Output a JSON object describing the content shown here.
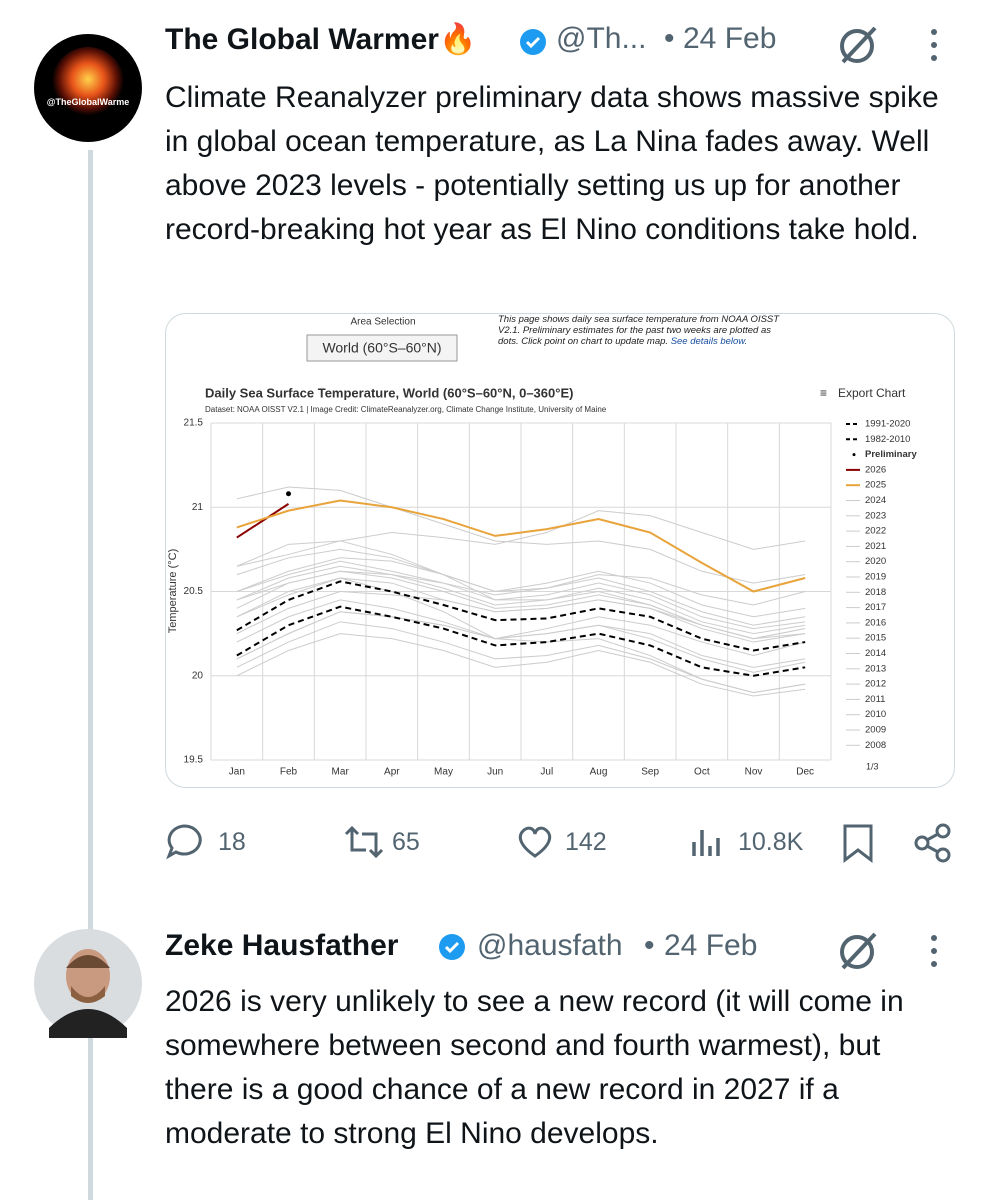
{
  "tweets": [
    {
      "author": "The Global Warmer🔥",
      "handle": "@Th...",
      "date": "24 Feb",
      "avatar_label": "@TheGlobalWarme",
      "text": "Climate Reanalyzer preliminary data shows massive spike in global ocean temperature, as La Nina fades away. Well above 2023 levels - potentially setting us up for another record-breaking hot year as El Nino conditions take hold.",
      "replies": "18",
      "reposts": "65",
      "likes": "142",
      "views": "10.8K"
    },
    {
      "author": "Zeke Hausfather",
      "handle": "@hausfath",
      "date": "24 Feb",
      "text": "2026 is very unlikely to see a new record (it will come in somewhere between second and fourth warmest), but there is a good chance of a new record in 2027 if a moderate to strong El Nino develops."
    }
  ],
  "chart_data": {
    "type": "line",
    "title": "Daily Sea Surface Temperature, World (60°S–60°N, 0–360°E)",
    "subtitle": "Dataset: NOAA OISST V2.1 | Image Credit: ClimateReanalyzer.org, Climate Change Institute, University of Maine",
    "area_selection_label": "Area Selection",
    "area_selection_value": "World (60°S–60°N)",
    "note": "This page shows daily sea surface temperature from NOAA OISST V2.1. Preliminary estimates for the past two weeks are plotted as dots. Click point on chart to update map.",
    "note_link": "See details below.",
    "export_label": "Export Chart",
    "legend_page": "1/3",
    "y_label": "Temperature (°C)",
    "categories": [
      "Jan",
      "Feb",
      "Mar",
      "Apr",
      "May",
      "Jun",
      "Jul",
      "Aug",
      "Sep",
      "Oct",
      "Nov",
      "Dec"
    ],
    "ylim": [
      19.5,
      21.5
    ],
    "yticks": [
      19.5,
      20,
      20.5,
      21,
      21.5
    ],
    "grid": true,
    "series": [
      {
        "name": "1991-2020",
        "color": "#000000",
        "style": "dashed",
        "values": [
          20.27,
          20.45,
          20.56,
          20.5,
          20.42,
          20.33,
          20.34,
          20.4,
          20.35,
          20.22,
          20.15,
          20.2
        ]
      },
      {
        "name": "1982-2010",
        "color": "#000000",
        "style": "dashed",
        "values": [
          20.12,
          20.3,
          20.41,
          20.35,
          20.28,
          20.18,
          20.2,
          20.25,
          20.18,
          20.05,
          20.0,
          20.05
        ]
      },
      {
        "name": "Preliminary",
        "color": "#000000",
        "style": "dotted",
        "values": [
          null,
          21.08,
          null,
          null,
          null,
          null,
          null,
          null,
          null,
          null,
          null,
          null
        ]
      },
      {
        "name": "2026",
        "color": "#8b0000",
        "style": "solid",
        "values": [
          20.82,
          21.02,
          null,
          null,
          null,
          null,
          null,
          null,
          null,
          null,
          null,
          null
        ]
      },
      {
        "name": "2025",
        "color": "#e8a33a",
        "style": "solid",
        "values": [
          20.88,
          20.98,
          21.04,
          21.0,
          20.93,
          20.83,
          20.87,
          20.93,
          20.85,
          20.67,
          20.5,
          20.58
        ]
      },
      {
        "name": "2024",
        "color": "#cccccc",
        "style": "solid",
        "values": [
          21.05,
          21.12,
          21.1,
          21.0,
          20.9,
          20.8,
          20.78,
          20.8,
          20.75,
          20.62,
          20.55,
          20.6
        ]
      },
      {
        "name": "2023",
        "color": "#cccccc",
        "style": "solid",
        "values": [
          20.65,
          20.72,
          20.8,
          20.85,
          20.82,
          20.78,
          20.85,
          20.98,
          20.95,
          20.85,
          20.75,
          20.8
        ]
      },
      {
        "name": "2022",
        "color": "#cccccc",
        "style": "solid",
        "values": [
          20.5,
          20.6,
          20.68,
          20.62,
          20.55,
          20.45,
          20.48,
          20.55,
          20.48,
          20.35,
          20.28,
          20.32
        ]
      },
      {
        "name": "2021",
        "color": "#cccccc",
        "style": "solid",
        "values": [
          20.45,
          20.58,
          20.65,
          20.6,
          20.52,
          20.42,
          20.45,
          20.52,
          20.45,
          20.32,
          20.25,
          20.3
        ]
      },
      {
        "name": "2020",
        "color": "#cccccc",
        "style": "solid",
        "values": [
          20.6,
          20.7,
          20.75,
          20.7,
          20.6,
          20.5,
          20.52,
          20.58,
          20.5,
          20.38,
          20.3,
          20.35
        ]
      },
      {
        "name": "2019",
        "color": "#cccccc",
        "style": "solid",
        "values": [
          20.5,
          20.62,
          20.7,
          20.68,
          20.6,
          20.5,
          20.55,
          20.62,
          20.55,
          20.42,
          20.35,
          20.4
        ]
      },
      {
        "name": "2018",
        "color": "#cccccc",
        "style": "solid",
        "values": [
          20.35,
          20.48,
          20.58,
          20.55,
          20.45,
          20.38,
          20.4,
          20.45,
          20.4,
          20.28,
          20.2,
          20.25
        ]
      },
      {
        "name": "2017",
        "color": "#cccccc",
        "style": "solid",
        "values": [
          20.45,
          20.55,
          20.62,
          20.58,
          20.5,
          20.4,
          20.42,
          20.48,
          20.42,
          20.3,
          20.22,
          20.28
        ]
      },
      {
        "name": "2016",
        "color": "#cccccc",
        "style": "solid",
        "values": [
          20.65,
          20.78,
          20.8,
          20.72,
          20.6,
          20.45,
          20.45,
          20.5,
          20.42,
          20.3,
          20.22,
          20.25
        ]
      },
      {
        "name": "2015",
        "color": "#cccccc",
        "style": "solid",
        "values": [
          20.4,
          20.55,
          20.62,
          20.6,
          20.55,
          20.48,
          20.52,
          20.6,
          20.58,
          20.48,
          20.42,
          20.5
        ]
      },
      {
        "name": "2014",
        "color": "#cccccc",
        "style": "solid",
        "values": [
          20.25,
          20.4,
          20.5,
          20.48,
          20.45,
          20.38,
          20.4,
          20.45,
          20.4,
          20.3,
          20.22,
          20.28
        ]
      },
      {
        "name": "2013",
        "color": "#cccccc",
        "style": "solid",
        "values": [
          20.2,
          20.35,
          20.45,
          20.4,
          20.32,
          20.22,
          20.25,
          20.3,
          20.22,
          20.1,
          20.02,
          20.08
        ]
      },
      {
        "name": "2012",
        "color": "#cccccc",
        "style": "solid",
        "values": [
          20.1,
          20.25,
          20.38,
          20.35,
          20.3,
          20.22,
          20.25,
          20.3,
          20.25,
          20.12,
          20.05,
          20.1
        ]
      },
      {
        "name": "2011",
        "color": "#cccccc",
        "style": "solid",
        "values": [
          20.05,
          20.2,
          20.32,
          20.28,
          20.2,
          20.1,
          20.12,
          20.18,
          20.1,
          19.98,
          19.9,
          19.95
        ]
      },
      {
        "name": "2010",
        "color": "#cccccc",
        "style": "solid",
        "values": [
          20.35,
          20.5,
          20.58,
          20.5,
          20.38,
          20.22,
          20.2,
          20.22,
          20.12,
          19.98,
          19.9,
          19.95
        ]
      },
      {
        "name": "2009",
        "color": "#cccccc",
        "style": "solid",
        "values": [
          20.1,
          20.25,
          20.38,
          20.35,
          20.3,
          20.22,
          20.28,
          20.35,
          20.3,
          20.2,
          20.12,
          20.2
        ]
      },
      {
        "name": "2008",
        "color": "#cccccc",
        "style": "solid",
        "values": [
          20.0,
          20.15,
          20.25,
          20.22,
          20.15,
          20.05,
          20.08,
          20.15,
          20.08,
          19.95,
          19.88,
          19.92
        ]
      }
    ]
  }
}
